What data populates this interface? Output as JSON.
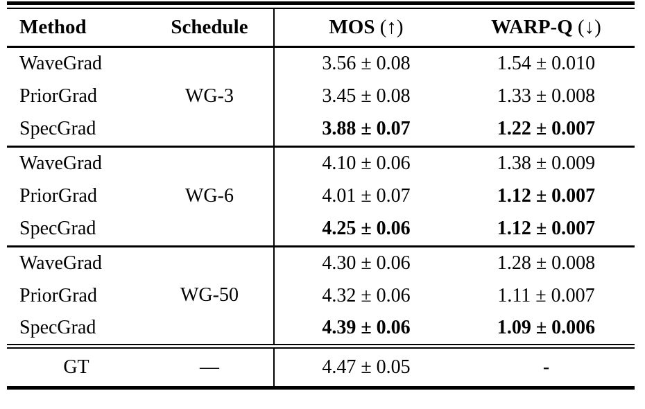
{
  "table": {
    "columns": {
      "method": "Method",
      "schedule": "Schedule",
      "mos_label": "MOS",
      "mos_arrow": "(↑)",
      "warpq_label": "WARP-Q",
      "warpq_arrow": "(↓)"
    },
    "groups": [
      {
        "schedule": "WG-3",
        "rows": [
          {
            "method": "WaveGrad",
            "mos": "3.56 ± 0.08",
            "warpq": "1.54 ± 0.010"
          },
          {
            "method": "PriorGrad",
            "mos": "3.45 ± 0.08",
            "warpq": "1.33 ± 0.008"
          },
          {
            "method": "SpecGrad",
            "mos": "3.88 ± 0.07",
            "warpq": "1.22 ± 0.007"
          }
        ]
      },
      {
        "schedule": "WG-6",
        "rows": [
          {
            "method": "WaveGrad",
            "mos": "4.10 ± 0.06",
            "warpq": "1.38 ± 0.009"
          },
          {
            "method": "PriorGrad",
            "mos": "4.01 ± 0.07",
            "warpq": "1.12 ± 0.007"
          },
          {
            "method": "SpecGrad",
            "mos": "4.25 ± 0.06",
            "warpq": "1.12 ± 0.007"
          }
        ]
      },
      {
        "schedule": "WG-50",
        "rows": [
          {
            "method": "WaveGrad",
            "mos": "4.30 ± 0.06",
            "warpq": "1.28 ± 0.008"
          },
          {
            "method": "PriorGrad",
            "mos": "4.32 ± 0.06",
            "warpq": "1.11 ± 0.007"
          },
          {
            "method": "SpecGrad",
            "mos": "4.39 ± 0.06",
            "warpq": "1.09 ± 0.006"
          }
        ]
      }
    ],
    "footer": {
      "method": "GT",
      "schedule": "—",
      "mos": "4.47 ± 0.05",
      "warpq": "-"
    }
  }
}
